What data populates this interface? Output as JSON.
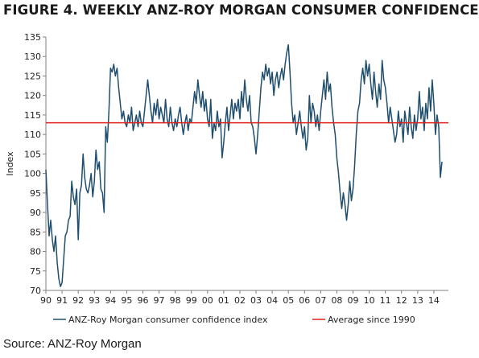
{
  "page": {
    "title": "FIGURE 4. WEEKLY ANZ-ROY MORGAN CONSUMER CONFIDENCE",
    "source": "Source: ANZ-Roy Morgan"
  },
  "chart_data": {
    "type": "line",
    "title": "FIGURE 4. WEEKLY ANZ-ROY MORGAN CONSUMER CONFIDENCE",
    "xlabel": "",
    "ylabel": "Index",
    "ylim": [
      70,
      135
    ],
    "xlim": [
      1990,
      2014.9
    ],
    "yticks": [
      70,
      75,
      80,
      85,
      90,
      95,
      100,
      105,
      110,
      115,
      120,
      125,
      130,
      135
    ],
    "xtick_labels": [
      "90",
      "91",
      "92",
      "93",
      "94",
      "95",
      "96",
      "97",
      "98",
      "99",
      "00",
      "01",
      "02",
      "03",
      "04",
      "05",
      "06",
      "07",
      "08",
      "09",
      "10",
      "11",
      "12",
      "13",
      "14"
    ],
    "grid": false,
    "legend_position": "bottom",
    "colors": {
      "series": "#1f4e6e",
      "average": "#e0201b"
    },
    "series": [
      {
        "name": "ANZ-Roy Morgan consumer confidence index",
        "points": [
          [
            1990.0,
            101
          ],
          [
            1990.1,
            92
          ],
          [
            1990.2,
            84
          ],
          [
            1990.3,
            88
          ],
          [
            1990.4,
            83
          ],
          [
            1990.5,
            80
          ],
          [
            1990.6,
            84
          ],
          [
            1990.7,
            77
          ],
          [
            1990.8,
            73
          ],
          [
            1990.9,
            71
          ],
          [
            1991.0,
            72
          ],
          [
            1991.1,
            78
          ],
          [
            1991.2,
            84
          ],
          [
            1991.3,
            85
          ],
          [
            1991.4,
            88
          ],
          [
            1991.5,
            89
          ],
          [
            1991.6,
            98
          ],
          [
            1991.7,
            94
          ],
          [
            1991.8,
            92
          ],
          [
            1991.9,
            96
          ],
          [
            1992.0,
            83
          ],
          [
            1992.1,
            95
          ],
          [
            1992.2,
            97
          ],
          [
            1992.3,
            105
          ],
          [
            1992.4,
            99
          ],
          [
            1992.5,
            96
          ],
          [
            1992.6,
            95
          ],
          [
            1992.7,
            97
          ],
          [
            1992.8,
            100
          ],
          [
            1992.9,
            94
          ],
          [
            1993.0,
            98
          ],
          [
            1993.1,
            106
          ],
          [
            1993.2,
            101
          ],
          [
            1993.3,
            103
          ],
          [
            1993.4,
            96
          ],
          [
            1993.5,
            95
          ],
          [
            1993.6,
            90
          ],
          [
            1993.7,
            112
          ],
          [
            1993.8,
            108
          ],
          [
            1993.9,
            116
          ],
          [
            1994.0,
            127
          ],
          [
            1994.1,
            126
          ],
          [
            1994.2,
            128
          ],
          [
            1994.3,
            125
          ],
          [
            1994.4,
            127
          ],
          [
            1994.5,
            122
          ],
          [
            1994.6,
            118
          ],
          [
            1994.7,
            114
          ],
          [
            1994.8,
            116
          ],
          [
            1994.9,
            113
          ],
          [
            1995.0,
            112
          ],
          [
            1995.1,
            115
          ],
          [
            1995.2,
            113
          ],
          [
            1995.3,
            117
          ],
          [
            1995.4,
            111
          ],
          [
            1995.5,
            113
          ],
          [
            1995.6,
            115
          ],
          [
            1995.7,
            112
          ],
          [
            1995.8,
            116
          ],
          [
            1995.9,
            113
          ],
          [
            1996.0,
            112
          ],
          [
            1996.1,
            116
          ],
          [
            1996.2,
            120
          ],
          [
            1996.3,
            124
          ],
          [
            1996.4,
            120
          ],
          [
            1996.5,
            116
          ],
          [
            1996.6,
            113
          ],
          [
            1996.7,
            118
          ],
          [
            1996.8,
            115
          ],
          [
            1996.9,
            119
          ],
          [
            1997.0,
            114
          ],
          [
            1997.1,
            117
          ],
          [
            1997.2,
            115
          ],
          [
            1997.3,
            113
          ],
          [
            1997.4,
            119
          ],
          [
            1997.5,
            114
          ],
          [
            1997.6,
            112
          ],
          [
            1997.7,
            117
          ],
          [
            1997.8,
            113
          ],
          [
            1997.9,
            111
          ],
          [
            1998.0,
            114
          ],
          [
            1998.1,
            112
          ],
          [
            1998.2,
            115
          ],
          [
            1998.3,
            117
          ],
          [
            1998.4,
            113
          ],
          [
            1998.5,
            110
          ],
          [
            1998.6,
            113
          ],
          [
            1998.7,
            115
          ],
          [
            1998.8,
            111
          ],
          [
            1998.9,
            114
          ],
          [
            1999.0,
            113
          ],
          [
            1999.1,
            117
          ],
          [
            1999.2,
            121
          ],
          [
            1999.3,
            118
          ],
          [
            1999.4,
            124
          ],
          [
            1999.5,
            120
          ],
          [
            1999.6,
            117
          ],
          [
            1999.7,
            121
          ],
          [
            1999.8,
            116
          ],
          [
            1999.9,
            119
          ],
          [
            2000.0,
            114
          ],
          [
            2000.1,
            112
          ],
          [
            2000.2,
            119
          ],
          [
            2000.3,
            109
          ],
          [
            2000.4,
            113
          ],
          [
            2000.5,
            111
          ],
          [
            2000.6,
            116
          ],
          [
            2000.7,
            112
          ],
          [
            2000.8,
            114
          ],
          [
            2000.9,
            104
          ],
          [
            2001.0,
            108
          ],
          [
            2001.1,
            113
          ],
          [
            2001.2,
            117
          ],
          [
            2001.3,
            111
          ],
          [
            2001.4,
            115
          ],
          [
            2001.5,
            119
          ],
          [
            2001.6,
            114
          ],
          [
            2001.7,
            118
          ],
          [
            2001.8,
            116
          ],
          [
            2001.9,
            119
          ],
          [
            2002.0,
            114
          ],
          [
            2002.1,
            121
          ],
          [
            2002.2,
            117
          ],
          [
            2002.3,
            124
          ],
          [
            2002.4,
            119
          ],
          [
            2002.5,
            116
          ],
          [
            2002.6,
            120
          ],
          [
            2002.7,
            113
          ],
          [
            2002.8,
            112
          ],
          [
            2002.9,
            109
          ],
          [
            2003.0,
            105
          ],
          [
            2003.1,
            110
          ],
          [
            2003.2,
            116
          ],
          [
            2003.3,
            122
          ],
          [
            2003.4,
            126
          ],
          [
            2003.5,
            124
          ],
          [
            2003.6,
            128
          ],
          [
            2003.7,
            125
          ],
          [
            2003.8,
            127
          ],
          [
            2003.9,
            123
          ],
          [
            2004.0,
            126
          ],
          [
            2004.1,
            120
          ],
          [
            2004.2,
            124
          ],
          [
            2004.3,
            126
          ],
          [
            2004.4,
            122
          ],
          [
            2004.5,
            125
          ],
          [
            2004.6,
            127
          ],
          [
            2004.7,
            124
          ],
          [
            2004.8,
            128
          ],
          [
            2004.9,
            131
          ],
          [
            2005.0,
            133
          ],
          [
            2005.1,
            126
          ],
          [
            2005.2,
            118
          ],
          [
            2005.3,
            113
          ],
          [
            2005.4,
            115
          ],
          [
            2005.5,
            110
          ],
          [
            2005.6,
            113
          ],
          [
            2005.7,
            116
          ],
          [
            2005.8,
            112
          ],
          [
            2005.9,
            109
          ],
          [
            2006.0,
            112
          ],
          [
            2006.1,
            106
          ],
          [
            2006.2,
            109
          ],
          [
            2006.3,
            120
          ],
          [
            2006.4,
            113
          ],
          [
            2006.5,
            118
          ],
          [
            2006.6,
            116
          ],
          [
            2006.7,
            112
          ],
          [
            2006.8,
            115
          ],
          [
            2006.9,
            111
          ],
          [
            2007.0,
            116
          ],
          [
            2007.1,
            120
          ],
          [
            2007.2,
            124
          ],
          [
            2007.3,
            119
          ],
          [
            2007.4,
            126
          ],
          [
            2007.5,
            121
          ],
          [
            2007.6,
            123
          ],
          [
            2007.7,
            117
          ],
          [
            2007.8,
            113
          ],
          [
            2007.9,
            110
          ],
          [
            2008.0,
            104
          ],
          [
            2008.1,
            100
          ],
          [
            2008.2,
            95
          ],
          [
            2008.3,
            91
          ],
          [
            2008.4,
            95
          ],
          [
            2008.5,
            92
          ],
          [
            2008.6,
            88
          ],
          [
            2008.7,
            92
          ],
          [
            2008.8,
            98
          ],
          [
            2008.9,
            93
          ],
          [
            2009.0,
            96
          ],
          [
            2009.1,
            102
          ],
          [
            2009.2,
            110
          ],
          [
            2009.3,
            116
          ],
          [
            2009.4,
            118
          ],
          [
            2009.5,
            124
          ],
          [
            2009.6,
            127
          ],
          [
            2009.7,
            123
          ],
          [
            2009.8,
            129
          ],
          [
            2009.9,
            125
          ],
          [
            2010.0,
            128
          ],
          [
            2010.1,
            123
          ],
          [
            2010.2,
            119
          ],
          [
            2010.3,
            126
          ],
          [
            2010.4,
            121
          ],
          [
            2010.5,
            117
          ],
          [
            2010.6,
            123
          ],
          [
            2010.7,
            119
          ],
          [
            2010.8,
            129
          ],
          [
            2010.9,
            124
          ],
          [
            2011.0,
            122
          ],
          [
            2011.1,
            118
          ],
          [
            2011.2,
            113
          ],
          [
            2011.3,
            117
          ],
          [
            2011.4,
            114
          ],
          [
            2011.5,
            111
          ],
          [
            2011.6,
            108
          ],
          [
            2011.7,
            110
          ],
          [
            2011.8,
            116
          ],
          [
            2011.9,
            112
          ],
          [
            2012.0,
            114
          ],
          [
            2012.1,
            108
          ],
          [
            2012.2,
            116
          ],
          [
            2012.3,
            113
          ],
          [
            2012.4,
            110
          ],
          [
            2012.5,
            117
          ],
          [
            2012.6,
            112
          ],
          [
            2012.7,
            109
          ],
          [
            2012.8,
            115
          ],
          [
            2012.9,
            111
          ],
          [
            2013.0,
            114
          ],
          [
            2013.1,
            121
          ],
          [
            2013.2,
            114
          ],
          [
            2013.3,
            117
          ],
          [
            2013.4,
            111
          ],
          [
            2013.5,
            118
          ],
          [
            2013.6,
            114
          ],
          [
            2013.7,
            122
          ],
          [
            2013.8,
            116
          ],
          [
            2013.9,
            124
          ],
          [
            2014.0,
            118
          ],
          [
            2014.1,
            110
          ],
          [
            2014.2,
            115
          ],
          [
            2014.3,
            112
          ],
          [
            2014.4,
            99
          ],
          [
            2014.5,
            103
          ]
        ]
      },
      {
        "name": "Average since 1990",
        "constant": 113
      }
    ]
  }
}
